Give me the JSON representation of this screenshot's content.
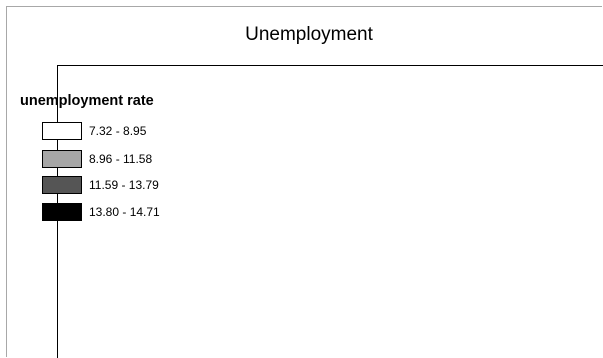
{
  "title": "Unemployment",
  "legend": {
    "title": "unemployment rate",
    "items": [
      {
        "label": "7.32 - 8.95",
        "color": "#ffffff"
      },
      {
        "label": "8.96 - 11.58",
        "color": "#a6a6a6"
      },
      {
        "label": "11.59 - 13.79",
        "color": "#555555"
      },
      {
        "label": "13.80 - 14.71",
        "color": "#000000"
      }
    ]
  }
}
